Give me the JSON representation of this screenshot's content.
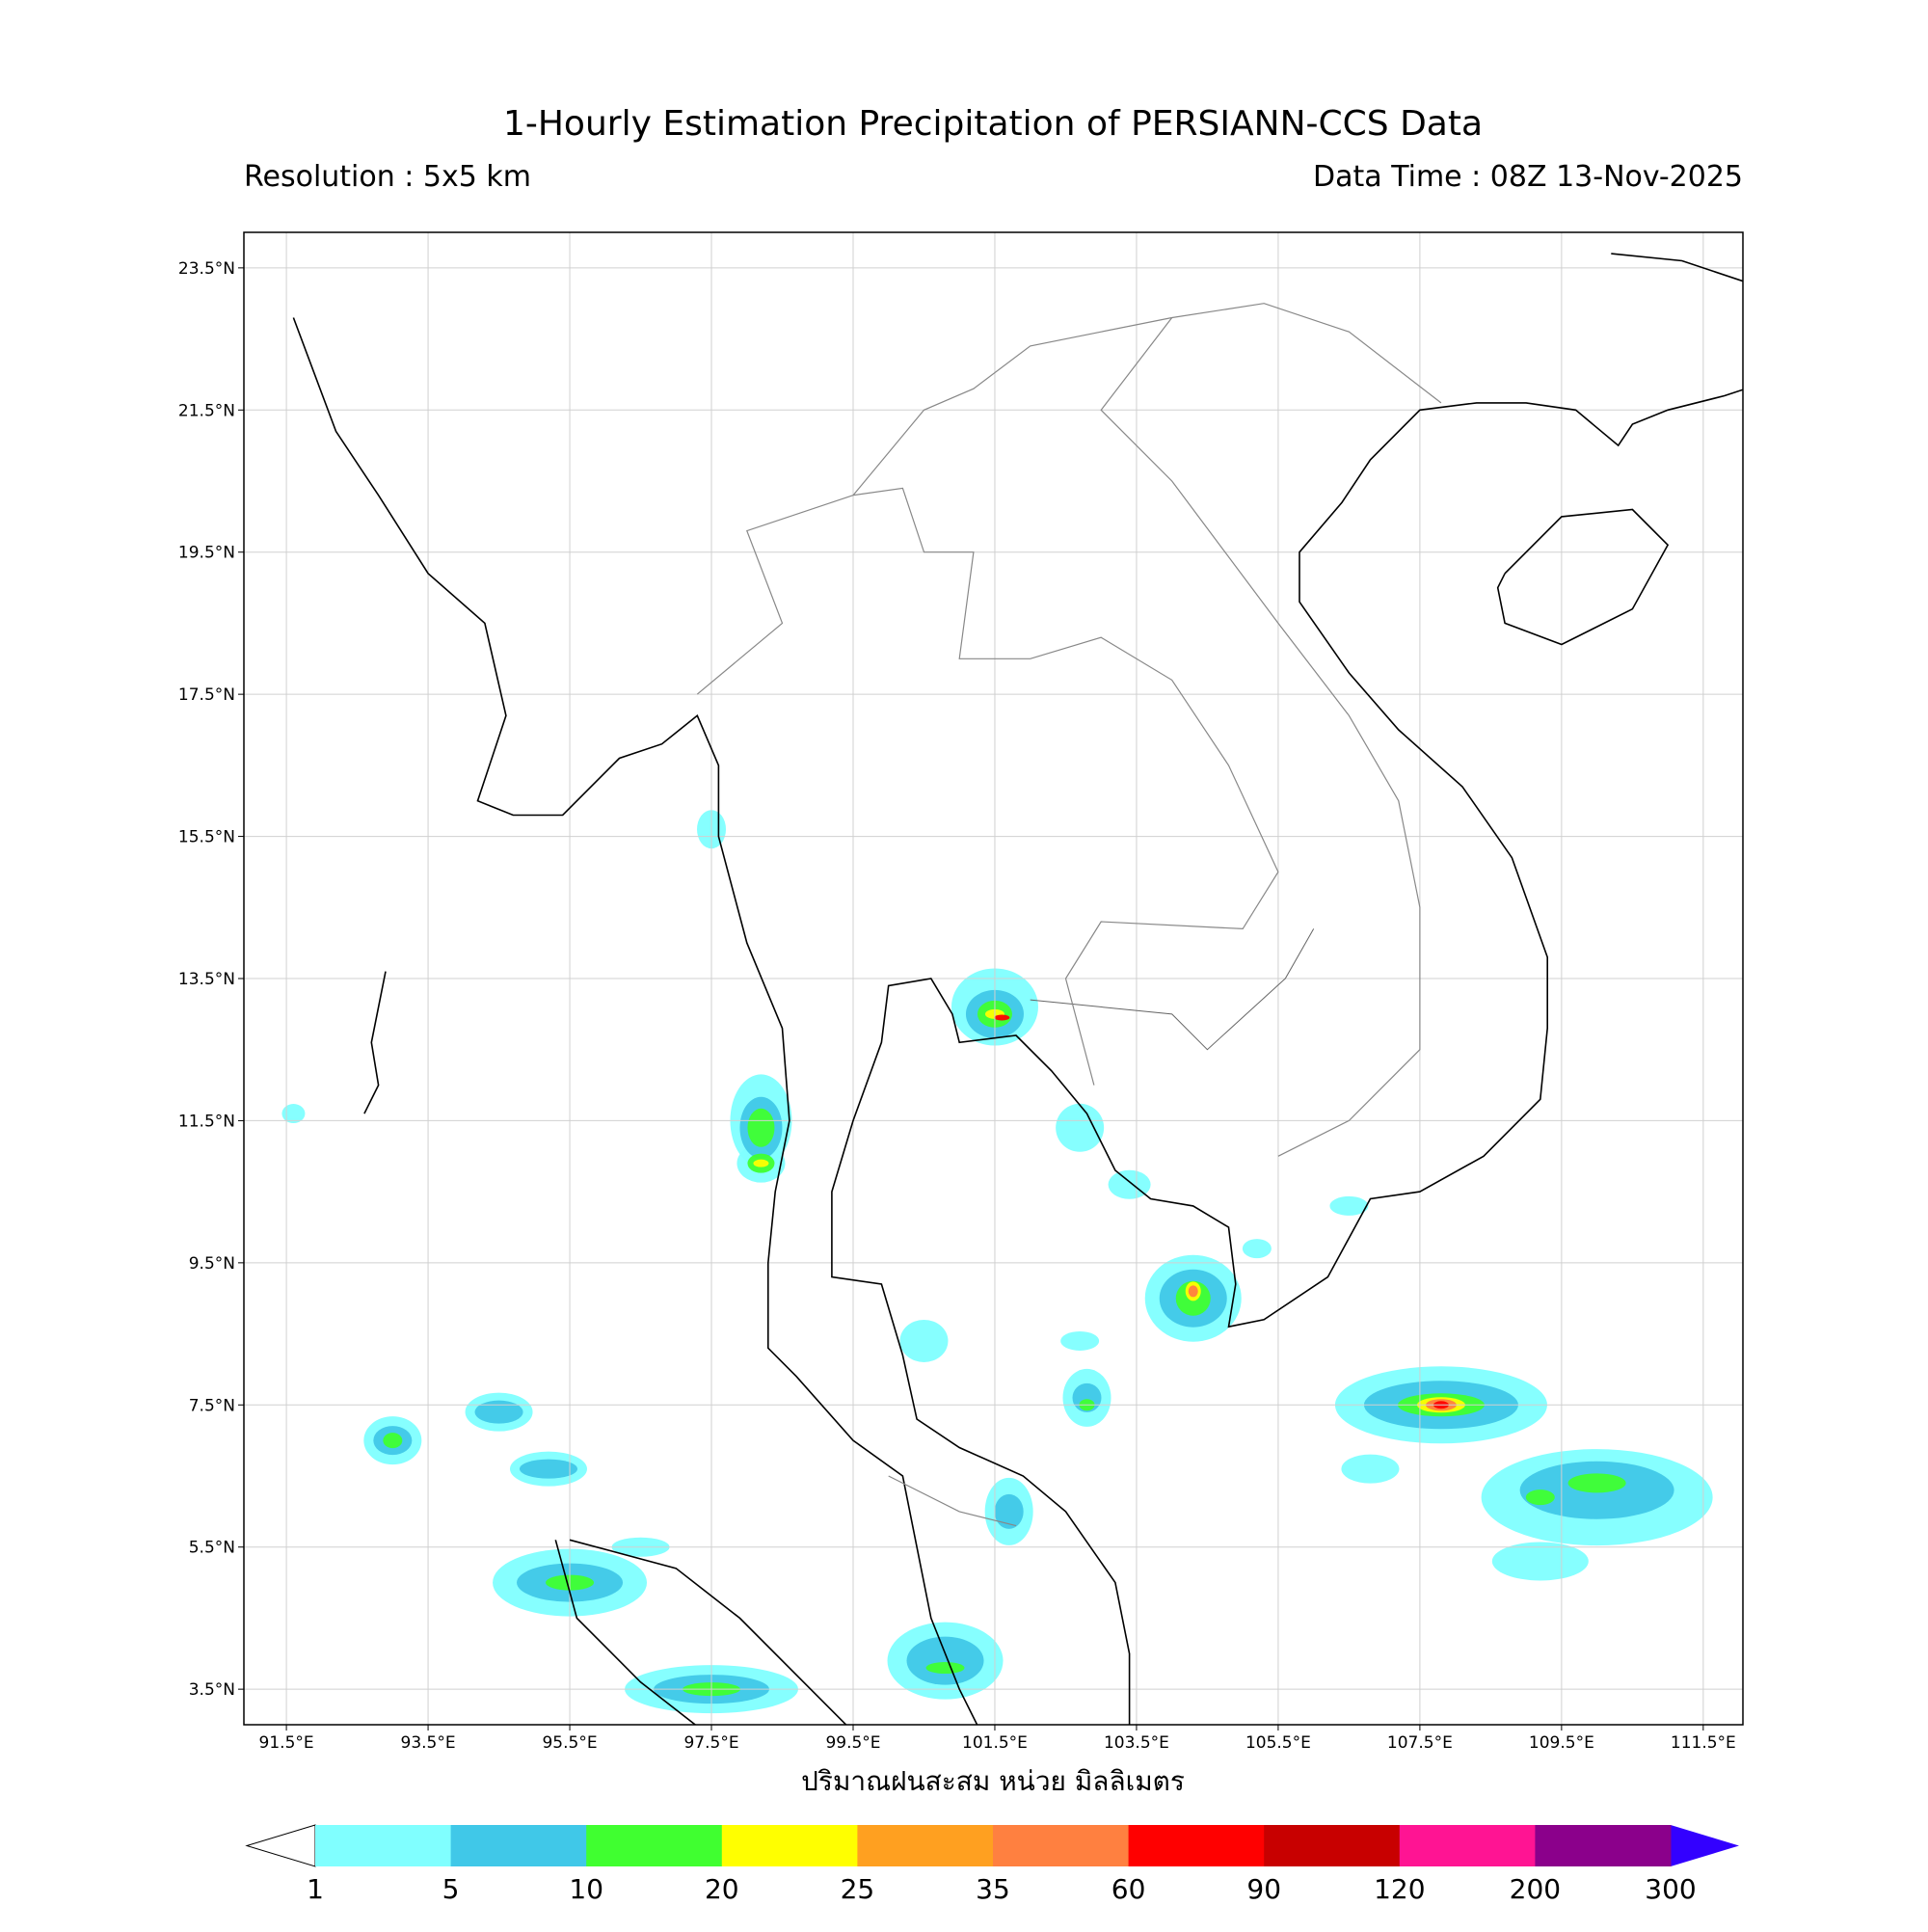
{
  "title": "1-Hourly Estimation Precipitation of PERSIANN-CCS Data",
  "resolution": "Resolution : 5x5 km",
  "data_time": "Data Time : 08Z 13-Nov-2025",
  "map": {
    "xlim": [
      90.9,
      112.06
    ],
    "ylim": [
      3.0,
      24.0
    ],
    "lon_ticks": [
      {
        "value": 91.5,
        "label": "91.5°E"
      },
      {
        "value": 93.5,
        "label": "93.5°E"
      },
      {
        "value": 95.5,
        "label": "95.5°E"
      },
      {
        "value": 97.5,
        "label": "97.5°E"
      },
      {
        "value": 99.5,
        "label": "99.5°E"
      },
      {
        "value": 101.5,
        "label": "101.5°E"
      },
      {
        "value": 103.5,
        "label": "103.5°E"
      },
      {
        "value": 105.5,
        "label": "105.5°E"
      },
      {
        "value": 107.5,
        "label": "107.5°E"
      },
      {
        "value": 109.5,
        "label": "109.5°E"
      },
      {
        "value": 111.5,
        "label": "111.5°E"
      }
    ],
    "lat_ticks": [
      {
        "value": 23.5,
        "label": "23.5°N"
      },
      {
        "value": 21.5,
        "label": "21.5°N"
      },
      {
        "value": 19.5,
        "label": "19.5°N"
      },
      {
        "value": 17.5,
        "label": "17.5°N"
      },
      {
        "value": 15.5,
        "label": "15.5°N"
      },
      {
        "value": 13.5,
        "label": "13.5°N"
      },
      {
        "value": 11.5,
        "label": "11.5°N"
      },
      {
        "value": 9.5,
        "label": "9.5°N"
      },
      {
        "value": 7.5,
        "label": "7.5°N"
      },
      {
        "value": 5.5,
        "label": "5.5°N"
      },
      {
        "value": 3.5,
        "label": "3.5°N"
      }
    ],
    "grid": true,
    "axis_label": "ปริมาณฝนสะสม หน่วย มิลลิเมตร"
  },
  "colorbar": {
    "ticks": [
      1,
      5,
      10,
      20,
      25,
      35,
      60,
      90,
      120,
      200,
      300
    ],
    "colors": [
      "#80ffff",
      "#40c8e8",
      "#40ff30",
      "#ffff00",
      "#ffa020",
      "#ff8040",
      "#ff0000",
      "#c80000",
      "#ff1493",
      "#8b008b"
    ],
    "under_color": "#ffffff",
    "over_color": "#3300ff"
  }
}
